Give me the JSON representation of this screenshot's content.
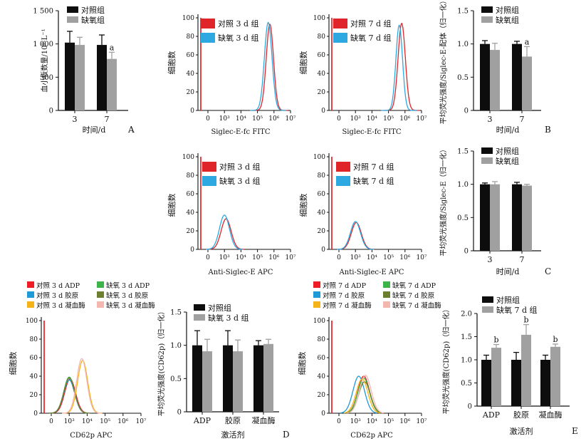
{
  "colors": {
    "control_black": "#0d0d0d",
    "hypoxia_gray": "#a0a0a0",
    "hist_red": "#e0252a",
    "hist_blue": "#2ea8e0",
    "adp_red": "#ee1c24",
    "adp_green": "#3cb44a",
    "collagen_blue": "#1e9ad6",
    "collagen_olive": "#6b7f2e",
    "thrombin_yellow": "#f5b31a",
    "thrombin_pink": "#f4b7b0"
  },
  "panel_letters": {
    "A": "A",
    "B": "B",
    "C": "C",
    "D": "D",
    "E": "E"
  },
  "chart_data": [
    {
      "id": "A",
      "type": "bar",
      "ylabel": "血小板数量/10⁹·L⁻¹",
      "xlabel": "时间/d",
      "categories": [
        "3",
        "7"
      ],
      "ylim": [
        0,
        1500
      ],
      "yticks": [
        "0",
        "500",
        "1 000",
        "1 500"
      ],
      "legend": [
        "对照组",
        "缺氧组"
      ],
      "series": [
        {
          "name": "对照组",
          "values": [
            1020,
            985
          ],
          "errors": [
            170,
            150
          ]
        },
        {
          "name": "缺氧组",
          "values": [
            985,
            775
          ],
          "errors": [
            115,
            100
          ]
        }
      ],
      "annotations": [
        {
          "series": 1,
          "index": 1,
          "text": "a"
        }
      ]
    },
    {
      "id": "A-hist-3d",
      "type": "line",
      "ylabel": "细胞数",
      "xlabel": "Siglec-E-fc FITC",
      "yticks": [
        "0",
        "20",
        "40",
        "60",
        "80",
        "100"
      ],
      "xticks": [
        "0",
        "10³",
        "10⁴",
        "10⁵",
        "10⁶",
        "10⁷"
      ],
      "legend": [
        "对照 3 d 组",
        "缺氧 3 d 组"
      ],
      "series": [
        {
          "name": "对照 3 d 组",
          "peak_x": 5.75,
          "peak_y": 93,
          "width": 0.22
        },
        {
          "name": "缺氧 3 d 组",
          "peak_x": 5.65,
          "peak_y": 95,
          "width": 0.23
        }
      ]
    },
    {
      "id": "A-hist-7d",
      "type": "line",
      "ylabel": "细胞数",
      "xlabel": "Siglec-E-fc FITC",
      "yticks": [
        "0",
        "20",
        "40",
        "60",
        "80",
        "100"
      ],
      "xticks": [
        "0",
        "10³",
        "10⁴",
        "10⁵",
        "10⁶",
        "10⁷"
      ],
      "legend": [
        "对照 7 d 组",
        "缺氧 7 d 组"
      ],
      "series": [
        {
          "name": "对照 7 d 组",
          "peak_x": 5.8,
          "peak_y": 94,
          "width": 0.22
        },
        {
          "name": "缺氧 7 d 组",
          "peak_x": 5.65,
          "peak_y": 92,
          "width": 0.2
        }
      ]
    },
    {
      "id": "B",
      "type": "bar",
      "ylabel": "平均荧光强度/Siglec-E-配体（归一化）",
      "xlabel": "时间/d",
      "categories": [
        "3",
        "7"
      ],
      "ylim": [
        0,
        1.5
      ],
      "yticks": [
        "0",
        "0.5",
        "1.0",
        "1.5"
      ],
      "legend": [
        "对照组",
        "缺氧组"
      ],
      "series": [
        {
          "name": "对照组",
          "values": [
            1.0,
            1.0
          ],
          "errors": [
            0.05,
            0.04
          ]
        },
        {
          "name": "缺氧组",
          "values": [
            0.91,
            0.81
          ],
          "errors": [
            0.1,
            0.15
          ]
        }
      ],
      "annotations": [
        {
          "series": 1,
          "index": 1,
          "text": "a"
        }
      ]
    },
    {
      "id": "C-hist-3d",
      "type": "line",
      "ylabel": "细胞数",
      "xlabel": "Anti-Siglec-E APC",
      "yticks": [
        "0",
        "20",
        "40",
        "60",
        "80",
        "100"
      ],
      "xticks": [
        "0",
        "10³",
        "10⁴",
        "10⁵",
        "10⁶",
        "10⁷"
      ],
      "legend": [
        "对照 3 d 组",
        "缺氧 3 d 组"
      ],
      "series": [
        {
          "name": "对照 3 d 组",
          "peak_x": 3.1,
          "peak_y": 33,
          "width": 0.3
        },
        {
          "name": "缺氧 3 d 组",
          "peak_x": 3.0,
          "peak_y": 37,
          "width": 0.3
        }
      ]
    },
    {
      "id": "C-hist-7d",
      "type": "line",
      "ylabel": "细胞数",
      "xlabel": "Anti-Siglec-E APC",
      "yticks": [
        "0",
        "20",
        "40",
        "60",
        "80",
        "100"
      ],
      "xticks": [
        "0",
        "10³",
        "10⁴",
        "10⁵",
        "10⁶",
        "10⁷"
      ],
      "legend": [
        "对照 7 d 组",
        "缺氧 7 d 组"
      ],
      "series": [
        {
          "name": "对照 7 d 组",
          "peak_x": 3.05,
          "peak_y": 29,
          "width": 0.3
        },
        {
          "name": "缺氧 7 d 组",
          "peak_x": 3.0,
          "peak_y": 30,
          "width": 0.3
        }
      ]
    },
    {
      "id": "C",
      "type": "bar",
      "ylabel": "平均荧光强度/Siglec-E（归一化）",
      "xlabel": "时间/d",
      "categories": [
        "3",
        "7"
      ],
      "ylim": [
        0,
        1.5
      ],
      "yticks": [
        "0",
        "0.5",
        "1.0",
        "1.5"
      ],
      "legend": [
        "对照组",
        "缺氧组"
      ],
      "series": [
        {
          "name": "对照组",
          "values": [
            1.0,
            1.0
          ],
          "errors": [
            0.02,
            0.03
          ]
        },
        {
          "name": "缺氧组",
          "values": [
            1.0,
            0.98
          ],
          "errors": [
            0.04,
            0.02
          ]
        }
      ]
    },
    {
      "id": "D-hist",
      "type": "line",
      "ylabel": "细胞数",
      "xlabel": "CD62p APC",
      "yticks": [
        "0",
        "20",
        "40",
        "60",
        "80",
        "100"
      ],
      "xticks": [
        "0",
        "10³",
        "10⁴",
        "10⁵",
        "10⁶",
        "10⁷"
      ],
      "legend": [
        "对照 3 d ADP",
        "缺氧 3 d ADP",
        "对照 3 d 胶原",
        "缺氧 3 d 胶原",
        "对照 3 d 凝血酶",
        "缺氧 3 d 凝血酶"
      ],
      "series": [
        {
          "name": "对照 3 d ADP",
          "peak_x": 3.05,
          "peak_y": 37,
          "width": 0.3
        },
        {
          "name": "缺氧 3 d ADP",
          "peak_x": 3.0,
          "peak_y": 39,
          "width": 0.3
        },
        {
          "name": "对照 3 d 胶原",
          "peak_x": 3.0,
          "peak_y": 36,
          "width": 0.3
        },
        {
          "name": "缺氧 3 d 胶原",
          "peak_x": 3.0,
          "peak_y": 38,
          "width": 0.3
        },
        {
          "name": "对照 3 d 凝血酶",
          "peak_x": 3.75,
          "peak_y": 57,
          "width": 0.28
        },
        {
          "name": "缺氧 3 d 凝血酶",
          "peak_x": 3.7,
          "peak_y": 59,
          "width": 0.28
        }
      ]
    },
    {
      "id": "D",
      "type": "bar",
      "ylabel": "平均荧光强度(CD62p)（归一化）",
      "xlabel": "激活剂",
      "categories": [
        "ADP",
        "胶原",
        "凝血酶"
      ],
      "ylim": [
        0,
        1.5
      ],
      "yticks": [
        "0",
        "0.5",
        "1.0",
        "1.5"
      ],
      "legend": [
        "对照组",
        "缺氧 3 d 组"
      ],
      "series": [
        {
          "name": "对照组",
          "values": [
            1.0,
            1.0,
            1.0
          ],
          "errors": [
            0.22,
            0.22,
            0.07
          ]
        },
        {
          "name": "缺氧 3 d 组",
          "values": [
            0.91,
            0.91,
            1.02
          ],
          "errors": [
            0.18,
            0.17,
            0.07
          ]
        }
      ]
    },
    {
      "id": "E-hist",
      "type": "line",
      "ylabel": "细胞数",
      "xlabel": "CD62p APC",
      "yticks": [
        "0",
        "20",
        "40",
        "60",
        "80",
        "100"
      ],
      "xticks": [
        "0",
        "10³",
        "10⁴",
        "10⁵",
        "10⁶",
        "10⁷"
      ],
      "legend": [
        "对照 7 d ADP",
        "缺氧 7 d ADP",
        "对照 7 d 胶原",
        "缺氧 7 d 胶原",
        "对照 7 d 凝血酶",
        "缺氧 7 d 凝血酶"
      ],
      "series": [
        {
          "name": "对照 7 d ADP",
          "peak_x": 3.5,
          "peak_y": 40,
          "width": 0.35
        },
        {
          "name": "缺氧 7 d ADP",
          "peak_x": 3.5,
          "peak_y": 38,
          "width": 0.35
        },
        {
          "name": "对照 7 d 胶原",
          "peak_x": 3.2,
          "peak_y": 40,
          "width": 0.35
        },
        {
          "name": "缺氧 7 d 胶原",
          "peak_x": 3.55,
          "peak_y": 34,
          "width": 0.35
        },
        {
          "name": "对照 7 d 凝血酶",
          "peak_x": 3.4,
          "peak_y": 37,
          "width": 0.35
        },
        {
          "name": "缺氧 7 d 凝血酶",
          "peak_x": 3.6,
          "peak_y": 41,
          "width": 0.35
        }
      ]
    },
    {
      "id": "E",
      "type": "bar",
      "ylabel": "平均荧光强度(CD62p)（归一化）",
      "xlabel": "激活剂",
      "categories": [
        "ADP",
        "胶原",
        "凝血酶"
      ],
      "ylim": [
        0,
        2.0
      ],
      "yticks": [
        "0",
        "0.5",
        "1.0",
        "1.5",
        "2.0"
      ],
      "legend": [
        "对照组",
        "缺氧 7 d 组"
      ],
      "series": [
        {
          "name": "对照组",
          "values": [
            1.0,
            1.0,
            1.0
          ],
          "errors": [
            0.1,
            0.16,
            0.1
          ]
        },
        {
          "name": "缺氧 7 d 组",
          "values": [
            1.26,
            1.54,
            1.28
          ],
          "errors": [
            0.07,
            0.22,
            0.06
          ]
        }
      ],
      "annotations": [
        {
          "series": 1,
          "index": 0,
          "text": "b"
        },
        {
          "series": 1,
          "index": 1,
          "text": "b"
        },
        {
          "series": 1,
          "index": 2,
          "text": "b"
        }
      ]
    }
  ]
}
